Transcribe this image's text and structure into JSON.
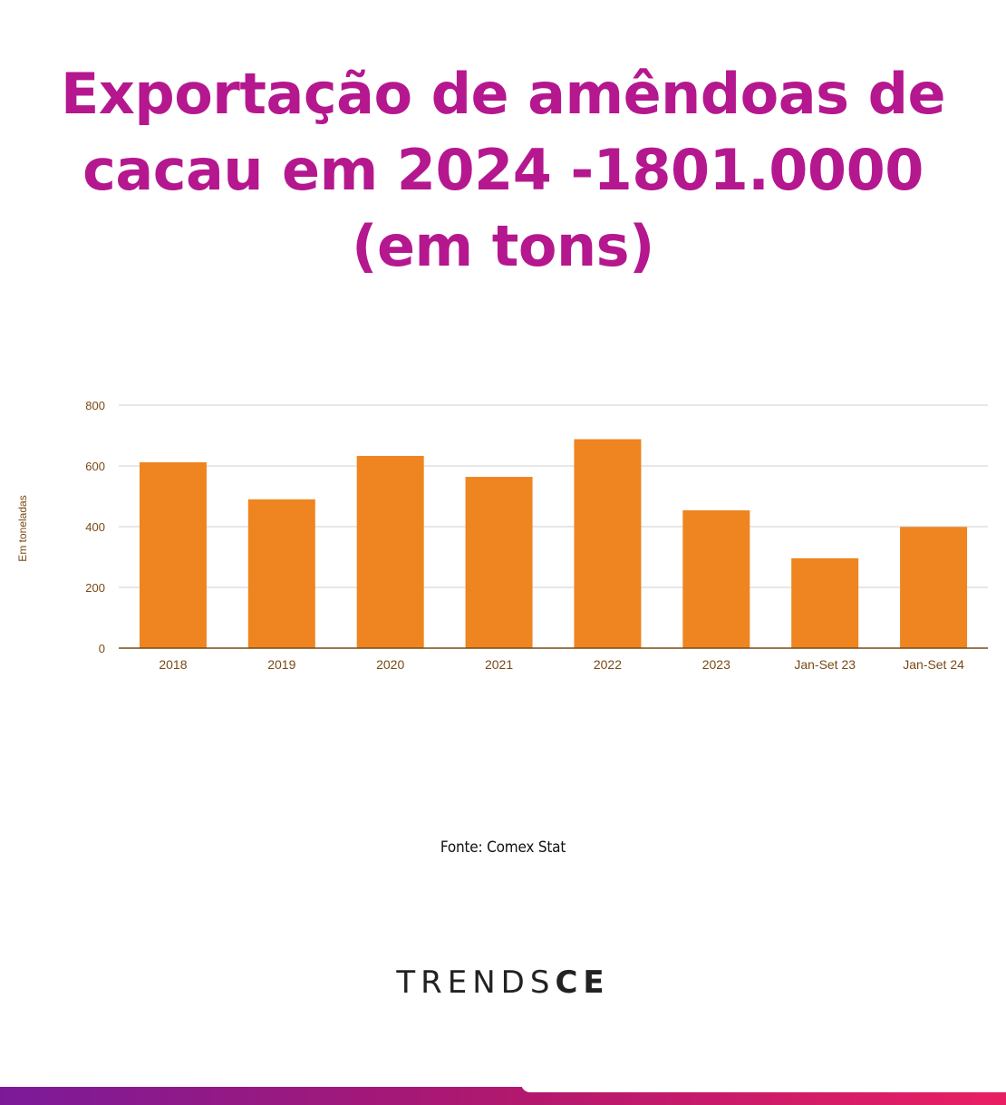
{
  "header": {
    "title_line1": "Exportação de amêndoas de",
    "title_line2": "cacau em 2024 -1801.0000",
    "title_line3": "(em tons)"
  },
  "chart_data": {
    "type": "bar",
    "categories": [
      "2018",
      "2019",
      "2020",
      "2021",
      "2022",
      "2023",
      "Jan-Set 23",
      "Jan-Set 24"
    ],
    "values": [
      612,
      490,
      633,
      564,
      688,
      454,
      296,
      399
    ],
    "ylabel": "Em toneladas",
    "ylim": [
      0,
      800
    ],
    "yticks": [
      "0",
      "200",
      "400",
      "600",
      "800"
    ],
    "ytick_values": [
      0,
      200,
      400,
      600,
      800
    ],
    "grid": true,
    "bar_color": "#ee8520",
    "axis_text_color": "#7a4a14"
  },
  "footer": {
    "source": "Fonte: Comex Stat"
  },
  "brand": {
    "light": "TRENDS",
    "bold": "CE"
  },
  "colors": {
    "title": "#b5178f",
    "bar": "#ee8520"
  }
}
